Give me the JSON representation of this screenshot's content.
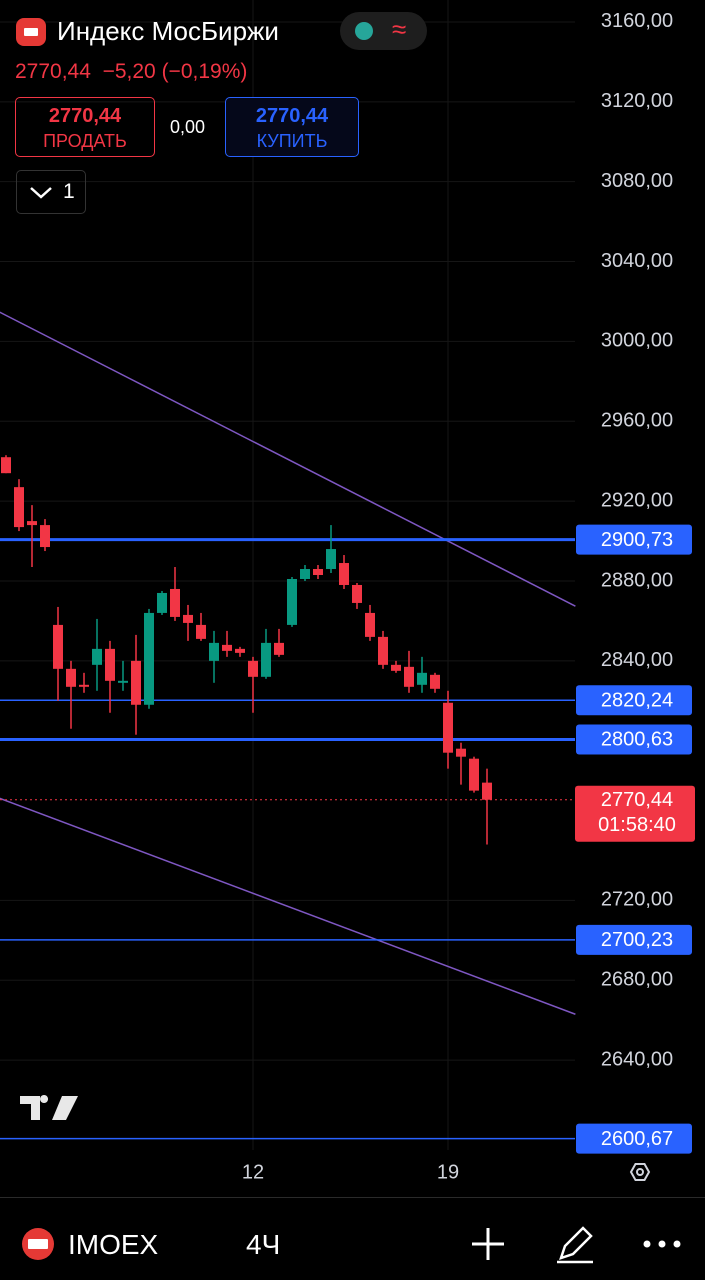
{
  "header": {
    "title": "Индекс МосБиржи",
    "price": "2770,44",
    "change": "−5,20 (−0,19%)",
    "sell_price": "2770,44",
    "sell_label": "ПРОДАТЬ",
    "spread": "0,00",
    "buy_price": "2770,44",
    "buy_label": "КУПИТЬ",
    "layout_count": "1"
  },
  "footer": {
    "symbol": "IMOEX",
    "interval": "4Ч"
  },
  "chart_data": {
    "type": "candlestick",
    "categories": [
      null,
      null,
      null,
      null,
      null,
      null,
      null,
      null,
      null,
      null,
      null,
      null,
      null,
      null,
      null,
      null,
      null,
      null,
      null,
      "12",
      null,
      null,
      null,
      null,
      null,
      null,
      null,
      null,
      null,
      null,
      null,
      null,
      null,
      null,
      "19",
      null,
      null,
      null
    ],
    "open": [
      2942,
      2927,
      2910,
      2908,
      2858,
      2836,
      2828,
      2838,
      2846,
      2829,
      2840,
      2818,
      2864,
      2876,
      2863,
      2858,
      2840,
      2848,
      2846,
      2840,
      2832,
      2849,
      2858,
      2881,
      2886,
      2886,
      2889,
      2878,
      2864,
      2852,
      2838,
      2837,
      2828,
      2833,
      2819,
      2796,
      2791,
      2779
    ],
    "high": [
      2943,
      2931,
      2918,
      2911,
      2867,
      2840,
      2834,
      2861,
      2850,
      2840,
      2853,
      2866,
      2875,
      2887,
      2868,
      2864,
      2855,
      2855,
      2847,
      2842,
      2856,
      2856,
      2882,
      2888,
      2888,
      2908,
      2893,
      2879,
      2868,
      2855,
      2840,
      2845,
      2842,
      2834,
      2825,
      2799,
      2792,
      2786
    ],
    "low": [
      2934,
      2905,
      2887,
      2895,
      2820,
      2806,
      2824,
      2825,
      2814,
      2825,
      2803,
      2816,
      2863,
      2860,
      2850,
      2850,
      2829,
      2842,
      2842,
      2814,
      2831,
      2842,
      2857,
      2880,
      2881,
      2884,
      2876,
      2866,
      2850,
      2836,
      2834,
      2824,
      2824,
      2824,
      2786,
      2778,
      2774,
      2748
    ],
    "close": [
      2934,
      2907,
      2908,
      2897,
      2836,
      2827,
      2827,
      2846,
      2830,
      2830,
      2818,
      2864,
      2874,
      2862,
      2859,
      2851,
      2849,
      2845,
      2844,
      2832,
      2849,
      2843,
      2881,
      2886,
      2883,
      2896,
      2878,
      2869,
      2852,
      2838,
      2835,
      2827,
      2834,
      2826,
      2794,
      2792,
      2775,
      2770.44
    ],
    "up_color": "#089981",
    "down_color": "#f23645",
    "ylim": [
      2595,
      3171
    ],
    "yticks": [
      {
        "value": 3160,
        "label": "3160,00"
      },
      {
        "value": 3120,
        "label": "3120,00"
      },
      {
        "value": 3080,
        "label": "3080,00"
      },
      {
        "value": 3040,
        "label": "3040,00"
      },
      {
        "value": 3000,
        "label": "3000,00"
      },
      {
        "value": 2960,
        "label": "2960,00"
      },
      {
        "value": 2920,
        "label": "2920,00"
      },
      {
        "value": 2880,
        "label": "2880,00"
      },
      {
        "value": 2840,
        "label": "2840,00"
      },
      {
        "value": 2720,
        "label": "2720,00"
      },
      {
        "value": 2680,
        "label": "2680,00"
      },
      {
        "value": 2640,
        "label": "2640,00"
      }
    ],
    "grid": true,
    "levels": {
      "color": "#2962ff",
      "values": [
        2900.73,
        2820.24,
        2800.63,
        2700.23,
        2600.67
      ],
      "value_labels": [
        "2900,73",
        "2820,24",
        "2800,63",
        "2700,23",
        "2600,67"
      ]
    },
    "last_price": {
      "value": 2770.44,
      "label": "2770,44",
      "countdown": "01:58:40",
      "color": "#f23645"
    },
    "trendlines": {
      "color": "#7e57c2",
      "lines": [
        {
          "x": [
            -0.5,
            43.8
          ],
          "y": [
            3014.7,
            2867.4
          ]
        },
        {
          "x": [
            -0.5,
            43.8
          ],
          "y": [
            2771.2,
            2663
          ]
        }
      ]
    }
  }
}
